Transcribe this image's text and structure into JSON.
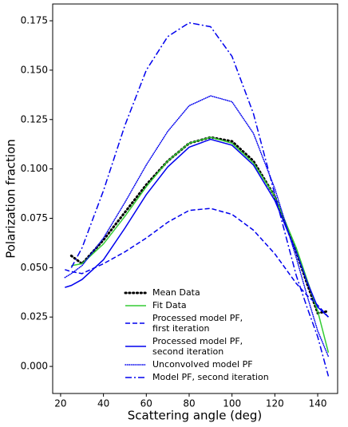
{
  "chart_data": {
    "type": "line",
    "xlabel": "Scattering angle (deg)",
    "ylabel": "Polarization fraction",
    "x": [
      22,
      25,
      30,
      40,
      50,
      60,
      70,
      80,
      90,
      100,
      110,
      120,
      130,
      135,
      140,
      145
    ],
    "series": [
      {
        "name": "Mean Data",
        "color": "#000000",
        "style": "dotted",
        "width": 3,
        "values": [
          null,
          0.056,
          0.052,
          0.064,
          0.078,
          0.092,
          0.104,
          0.113,
          0.116,
          0.114,
          0.104,
          0.086,
          0.058,
          0.042,
          0.027,
          0.028
        ]
      },
      {
        "name": "Fit Data",
        "color": "#33cc33",
        "style": "solid",
        "width": 1.5,
        "values": [
          null,
          0.051,
          0.052,
          0.062,
          0.076,
          0.091,
          0.104,
          0.113,
          0.116,
          0.113,
          0.103,
          0.086,
          0.06,
          0.044,
          0.028,
          0.007
        ]
      },
      {
        "name": "Processed model PF,\nfirst iteration",
        "color": "#0000ee",
        "style": "dashed",
        "width": 1.5,
        "values": [
          0.049,
          0.048,
          0.047,
          0.052,
          0.058,
          0.065,
          0.073,
          0.079,
          0.08,
          0.077,
          0.069,
          0.057,
          0.042,
          0.036,
          0.031,
          0.025
        ]
      },
      {
        "name": "Processed model PF,\nsecond iteration",
        "color": "#0000ee",
        "style": "solid",
        "width": 1.5,
        "values": [
          0.04,
          0.041,
          0.044,
          0.054,
          0.07,
          0.087,
          0.101,
          0.111,
          0.115,
          0.112,
          0.102,
          0.084,
          0.058,
          0.043,
          0.03,
          0.025
        ]
      },
      {
        "name": "Unconvolved model PF",
        "color": "#0000ee",
        "style": "dotted",
        "width": 1.5,
        "values": [
          0.045,
          0.047,
          0.051,
          0.065,
          0.083,
          0.102,
          0.119,
          0.132,
          0.137,
          0.134,
          0.118,
          0.09,
          0.055,
          0.036,
          0.018,
          0.005
        ]
      },
      {
        "name": "Model PF, second iteration",
        "color": "#0000ee",
        "style": "dashdot",
        "width": 1.5,
        "values": [
          null,
          0.05,
          0.06,
          0.089,
          0.122,
          0.15,
          0.167,
          0.174,
          0.172,
          0.157,
          0.128,
          0.087,
          0.046,
          0.03,
          0.015,
          -0.005
        ]
      }
    ],
    "xlim": [
      16.3,
      149.3
    ],
    "ylim": [
      -0.0137,
      0.1835
    ],
    "xticks": [
      20,
      40,
      60,
      80,
      100,
      120,
      140
    ],
    "yticks": [
      {
        "value": 0,
        "label": "0.000"
      },
      {
        "value": 0.025,
        "label": "0.025"
      },
      {
        "value": 0.05,
        "label": "0.050"
      },
      {
        "value": 0.075,
        "label": "0.075"
      },
      {
        "value": 0.1,
        "label": "0.100"
      },
      {
        "value": 0.125,
        "label": "0.125"
      },
      {
        "value": 0.15,
        "label": "0.150"
      },
      {
        "value": 0.175,
        "label": "0.175"
      }
    ],
    "legend": "lower center"
  }
}
